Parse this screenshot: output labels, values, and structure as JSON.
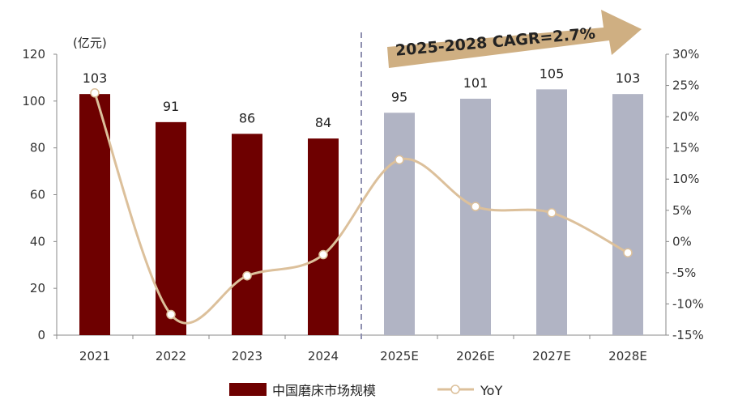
{
  "chart_data": {
    "type": "bar",
    "unit_label": "(亿元)",
    "categories": [
      "2021",
      "2022",
      "2023",
      "2024",
      "2025E",
      "2026E",
      "2027E",
      "2028E"
    ],
    "series": [
      {
        "name": "中国磨床市场规模",
        "type": "bar",
        "axis": "left",
        "values": [
          103,
          91,
          86,
          84,
          95,
          101,
          105,
          103
        ],
        "data_labels": [
          "103",
          "91",
          "86",
          "84",
          "95",
          "101",
          "105",
          "103"
        ],
        "colors": {
          "actual": "#6e0000",
          "forecast": "#b1b4c4"
        }
      },
      {
        "name": "YoY",
        "type": "line",
        "axis": "right",
        "values": [
          0.238,
          -0.117,
          -0.055,
          -0.021,
          0.131,
          0.056,
          0.046,
          -0.018
        ],
        "color": "#dcc09b"
      }
    ],
    "forecast_start_index": 4,
    "left_axis": {
      "min": 0,
      "max": 120,
      "step": 20,
      "tick_labels": [
        "0",
        "20",
        "40",
        "60",
        "80",
        "100",
        "120"
      ]
    },
    "right_axis": {
      "min": -0.15,
      "max": 0.3,
      "step": 0.05,
      "tick_labels": [
        "-15%",
        "-10%",
        "-5%",
        "0%",
        "5%",
        "10%",
        "15%",
        "20%",
        "25%",
        "30%"
      ]
    },
    "annotation": {
      "text": "2025-2028 CAGR=2.7%",
      "arrow_color": "#cfaf82"
    },
    "legend": {
      "position": "bottom",
      "entries": [
        "中国磨床市场规模",
        "YoY"
      ]
    },
    "grid": false
  }
}
